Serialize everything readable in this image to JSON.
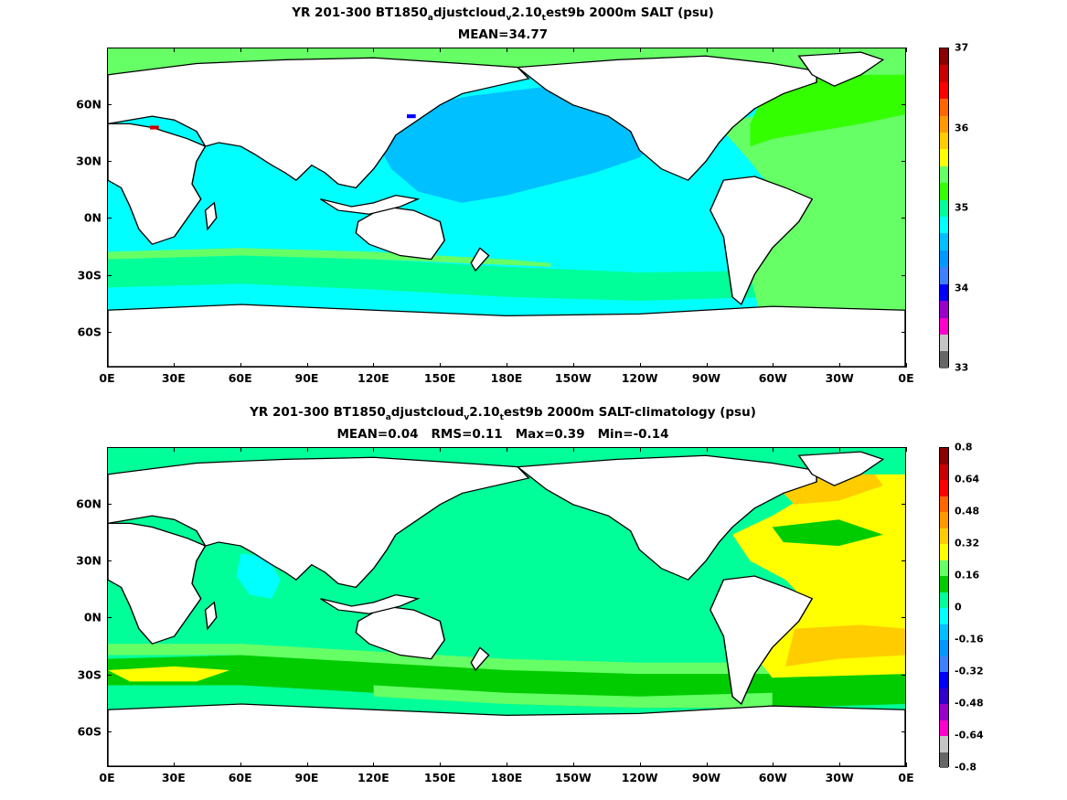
{
  "palette": [
    "#666666",
    "#c4c4c4",
    "#ff00cc",
    "#9900cc",
    "#3300cc",
    "#0000ff",
    "#3f80ff",
    "#0099ff",
    "#00c0ff",
    "#00ffff",
    "#00ff99",
    "#00cc00",
    "#66ff66",
    "#ffff00",
    "#ffcc00",
    "#ff9900",
    "#ff6600",
    "#ff0000",
    "#cc0000",
    "#8b0000"
  ],
  "panel1": {
    "title_pre": "YR 201-300 BT1850",
    "title_sub1": "a",
    "title_mid": "djustcloud",
    "title_sub2": "v",
    "title_mid2": "2.10",
    "title_sub3": "t",
    "title_post": "est9b 2000m SALT (psu)",
    "stats": [
      "MEAN=34.77"
    ],
    "colorbar_labels": [
      "37",
      "36",
      "35",
      "34",
      "33"
    ],
    "colorbar_range": [
      33,
      37
    ],
    "colorbar_tick_values": [
      37,
      36,
      35,
      34,
      33
    ],
    "colorbar_colors": [
      "#666666",
      "#c4c4c4",
      "#ff00cc",
      "#9900cc",
      "#0000ff",
      "#3f80ff",
      "#0099ff",
      "#00c0ff",
      "#00ffff",
      "#00ff99",
      "#33ff00",
      "#66ff66",
      "#ffff00",
      "#ffcc00",
      "#ff9900",
      "#ff6600",
      "#ff0000",
      "#cc0000",
      "#8b0000"
    ]
  },
  "panel2": {
    "title_pre": "YR 201-300 BT1850",
    "title_sub1": "a",
    "title_mid": "djustcloud",
    "title_sub2": "v",
    "title_mid2": "2.10",
    "title_sub3": "t",
    "title_post": "est9b 2000m SALT-climatology (psu)",
    "stats": [
      "MEAN=0.04",
      "RMS=0.11",
      "Max=0.39",
      "Min=-0.14"
    ],
    "colorbar_labels": [
      "0.8",
      "0.64",
      "0.48",
      "0.32",
      "0.16",
      "0",
      "-0.16",
      "-0.32",
      "-0.48",
      "-0.64",
      "-0.8"
    ],
    "colorbar_range": [
      -0.8,
      0.8
    ],
    "colorbar_tick_values": [
      0.8,
      0.64,
      0.48,
      0.32,
      0.16,
      0,
      -0.16,
      -0.32,
      -0.48,
      -0.64,
      -0.8
    ],
    "colorbar_colors": [
      "#666666",
      "#c4c4c4",
      "#ff00cc",
      "#9900cc",
      "#3300cc",
      "#0000ff",
      "#3f80ff",
      "#0099ff",
      "#00c0ff",
      "#00ffff",
      "#00ff99",
      "#00cc00",
      "#66ff66",
      "#ffff00",
      "#ffcc00",
      "#ff9900",
      "#ff6600",
      "#ff0000",
      "#cc0000",
      "#8b0000"
    ]
  },
  "axes": {
    "y_labels": [
      "60N",
      "30N",
      "0N",
      "30S",
      "60S"
    ],
    "y_values": [
      60,
      30,
      0,
      -30,
      -60
    ],
    "x_labels": [
      "0E",
      "30E",
      "60E",
      "90E",
      "120E",
      "150E",
      "180E",
      "150W",
      "120W",
      "90W",
      "60W",
      "30W",
      "0E"
    ],
    "x_values": [
      0,
      30,
      60,
      90,
      120,
      150,
      180,
      210,
      240,
      270,
      300,
      330,
      360
    ],
    "lat_range": [
      -79,
      90
    ],
    "lon_range": [
      0,
      360
    ]
  },
  "colors": {
    "land": "#ffffff",
    "coast": "#000000",
    "p1_ocean_low": "#00ffff",
    "p1_pacific": "#00c0ff",
    "p1_atlantic": "#66ff66",
    "p1_north_atl": "#33ff00",
    "p1_southern": "#00ff99",
    "p2_ocean": "#00ff99",
    "p2_southern": "#00cc00",
    "p2_south_light": "#66ff66",
    "p2_atlantic": "#ffff00",
    "p2_atl_warm": "#ffcc00",
    "p2_indian_cool": "#00ffff"
  }
}
